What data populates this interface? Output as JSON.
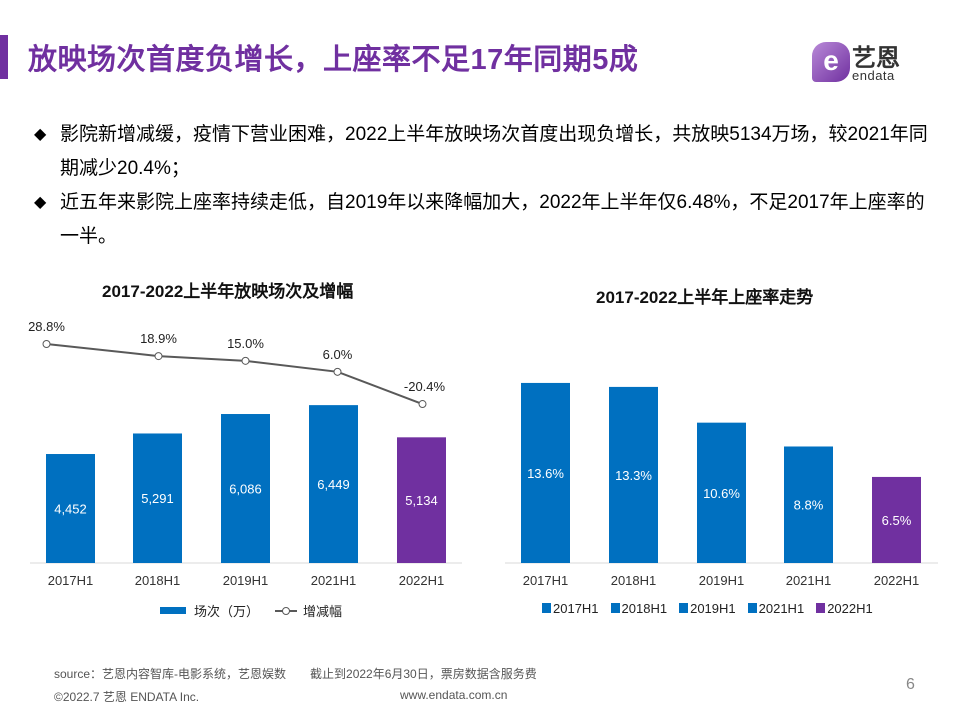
{
  "header": {
    "title": "放映场次首度负增长，上座率不足17年同期5成",
    "logo_text_cn": "艺恩",
    "logo_text_en": "endata"
  },
  "bullets": [
    "影院新增减缓，疫情下营业困难，2022上半年放映场次首度出现负增长，共放映5134万场，较2021年同期减少20.4%；",
    "近五年来影院上座率持续走低，自2019年以来降幅加大，2022年上半年仅6.48%，不足2017年上座率的一半。"
  ],
  "bullet_icon": "diamond-icon",
  "colors": {
    "blue": "#0070c0",
    "purple": "#7030a0",
    "line": "#595959"
  },
  "chart_data": [
    {
      "type": "bar+line",
      "title": "2017-2022上半年放映场次及增幅",
      "categories": [
        "2017H1",
        "2018H1",
        "2019H1",
        "2021H1",
        "2022H1"
      ],
      "series": [
        {
          "name": "场次（万）",
          "type": "bar",
          "values": [
            4452,
            5291,
            6086,
            6449,
            5134
          ],
          "labels": [
            "4,452",
            "5,291",
            "6,086",
            "6,449",
            "5,134"
          ],
          "colors": [
            "#0070c0",
            "#0070c0",
            "#0070c0",
            "#0070c0",
            "#7030a0"
          ]
        },
        {
          "name": "增减幅",
          "type": "line",
          "values": [
            28.8,
            18.9,
            15.0,
            6.0,
            -20.4
          ],
          "labels": [
            "28.8%",
            "18.9%",
            "15.0%",
            "6.0%",
            "-20.4%"
          ]
        }
      ],
      "legend": "bottom"
    },
    {
      "type": "bar",
      "title": "2017-2022上半年上座率走势",
      "categories": [
        "2017H1",
        "2018H1",
        "2019H1",
        "2021H1",
        "2022H1"
      ],
      "values": [
        13.6,
        13.3,
        10.6,
        8.8,
        6.5
      ],
      "labels": [
        "13.6%",
        "13.3%",
        "10.6%",
        "8.8%",
        "6.5%"
      ],
      "colors": [
        "#0070c0",
        "#0070c0",
        "#0070c0",
        "#0070c0",
        "#7030a0"
      ],
      "legend": "bottom"
    }
  ],
  "footer": {
    "source": "source：艺恩内容智库-电影系统，艺恩娱数　　截止到2022年6月30日，票房数据含服务费",
    "copyright": "©2022.7 艺恩 ENDATA Inc.",
    "website": "www.endata.com.cn",
    "page_number": "6"
  }
}
